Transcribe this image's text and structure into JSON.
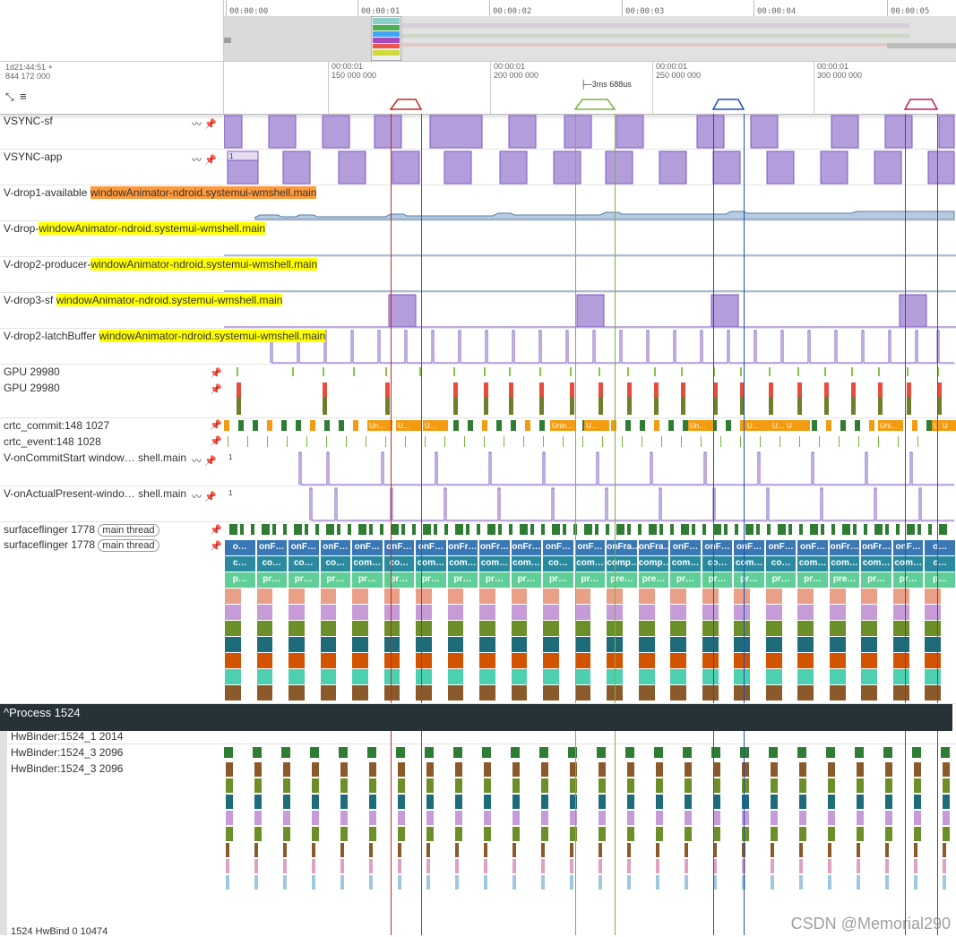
{
  "overview": {
    "ticks": [
      "00:00:00",
      "00:00:01",
      "00:00:02",
      "00:00:03",
      "00:00:04",
      "00:00:05"
    ]
  },
  "ruler": {
    "timestamp": "1d21:44:51  +",
    "offset": "844 172 000",
    "ticks": [
      {
        "top": "00:00:01",
        "bottom": "150 000 000"
      },
      {
        "top": "00:00:01",
        "bottom": "200 000 000"
      },
      {
        "top": "00:00:01",
        "bottom": "250 000 000"
      },
      {
        "top": "00:00:01",
        "bottom": "300 000 000"
      }
    ],
    "measure": "3ms 688us"
  },
  "tracks": {
    "vsync_sf": "VSYNC-sf",
    "vsync_app": "VSYNC-app",
    "vdrop1_prefix": "V-drop1-available ",
    "vdrop_prefix": "V-drop-",
    "vdrop2p_prefix": "V-drop2-producer-",
    "vdrop3_prefix": "V-drop3-sf ",
    "vdrop2l_prefix": "V-drop2-latchBuffer ",
    "highlight": "windowAnimator-ndroid.systemui-wmshell.main",
    "gpu1": "GPU 29980",
    "gpu2": "GPU 29980",
    "crtc_commit": "crtc_commit:148 1027",
    "crtc_event": "crtc_event:148 1028",
    "on_commit": "V-onCommitStart window…  shell.main",
    "on_present": "V-onActualPresent-windo…  shell.main",
    "sf1": "surfaceflinger 1778",
    "sf2": "surfaceflinger 1778",
    "main_thread": "main thread",
    "counter_one": "1"
  },
  "process": {
    "header": "Process 1524",
    "t1": "HwBinder:1524_1 2014",
    "t2": "HwBinder:1524_3 2096",
    "t3": "HwBinder:1524_3 2096",
    "t4": "1524 HwBind 0 10474"
  },
  "crtc_labels": [
    "Un…",
    "U…",
    "U…",
    "Unin…",
    "U…",
    "Un…",
    "U…",
    "U…",
    "U",
    "Uni…",
    "U",
    "U"
  ],
  "sf_row1": [
    "o…",
    "onF…",
    "onF…",
    "onF…",
    "onF…",
    "onF…",
    "onF…",
    "onFr…",
    "onFr…",
    "onFr…",
    "onF…",
    "onF…",
    "onFra…",
    "onFra…",
    "onF…",
    "onF…",
    "onF…",
    "onF…",
    "onF…",
    "onFr…",
    "onFr…",
    "onF…",
    "o…"
  ],
  "sf_row2": [
    "c…",
    "co…",
    "co…",
    "co…",
    "com…",
    "co…",
    "com…",
    "com…",
    "com…",
    "com…",
    "co…",
    "com…",
    "comp…",
    "comp…",
    "com…",
    "co…",
    "com…",
    "co…",
    "com…",
    "com…",
    "com…",
    "com…",
    "c…"
  ],
  "sf_row3": [
    "p…",
    "pr…",
    "pr…",
    "pr…",
    "pr…",
    "pr…",
    "pr…",
    "pr…",
    "pr…",
    "pr…",
    "pr…",
    "pr…",
    "pre…",
    "pre…",
    "pr…",
    "pr…",
    "pr…",
    "pr…",
    "pr…",
    "pre…",
    "pr…",
    "pr…",
    "p…"
  ],
  "watermark": "CSDN @Memorial290",
  "colors": {
    "vsync": "#b39ddb",
    "vsync_border": "#7e57c2",
    "green": "#2e7d32",
    "orange": "#f39c12",
    "header": "#263238",
    "sf_blue": "#3a78b5",
    "sf_teal": "#2aa07a",
    "sf_mint": "#5fcf97",
    "sf_salmon": "#e9a087"
  }
}
